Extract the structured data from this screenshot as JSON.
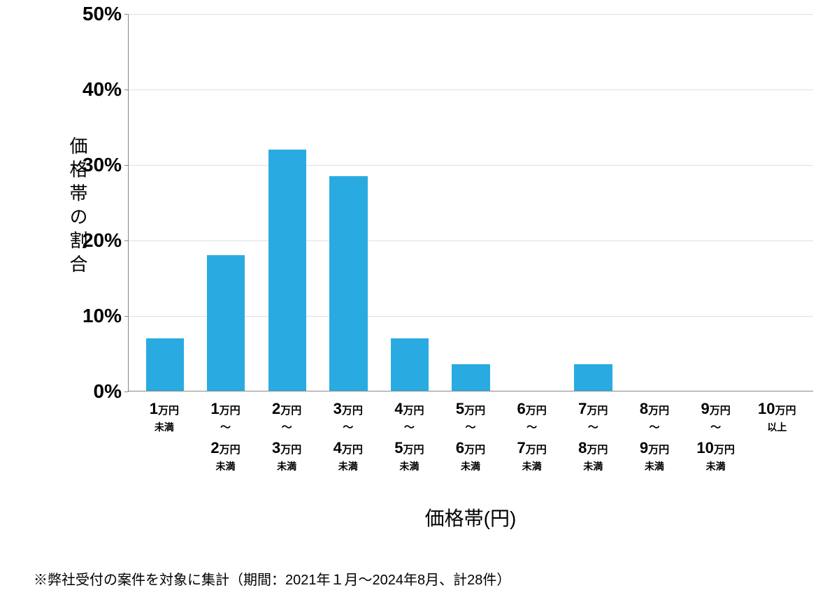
{
  "chart": {
    "type": "bar",
    "y_axis_label": "価格帯の割合",
    "x_axis_title": "価格帯(円)",
    "ylim": [
      0,
      50
    ],
    "ytick_step": 10,
    "ytick_suffix": "%",
    "yticks": [
      0,
      10,
      20,
      30,
      40,
      50
    ],
    "background_color": "#ffffff",
    "grid_color": "#e0e0e0",
    "axis_color": "#888888",
    "bar_color": "#29abe2",
    "bar_width_ratio": 0.62,
    "tick_label_fontsize": 28,
    "tick_label_fontweight": 700,
    "axis_label_fontsize": 26,
    "x_axis_title_fontsize": 28,
    "categories": [
      {
        "big": "1",
        "unit": "万円",
        "range_sep": "",
        "big2": "",
        "unit2": "",
        "sub": "未満"
      },
      {
        "big": "1",
        "unit": "万円",
        "range_sep": "〜",
        "big2": "2",
        "unit2": "万円",
        "sub": "未満"
      },
      {
        "big": "2",
        "unit": "万円",
        "range_sep": "〜",
        "big2": "3",
        "unit2": "万円",
        "sub": "未満"
      },
      {
        "big": "3",
        "unit": "万円",
        "range_sep": "〜",
        "big2": "4",
        "unit2": "万円",
        "sub": "未満"
      },
      {
        "big": "4",
        "unit": "万円",
        "range_sep": "〜",
        "big2": "5",
        "unit2": "万円",
        "sub": "未満"
      },
      {
        "big": "5",
        "unit": "万円",
        "range_sep": "〜",
        "big2": "6",
        "unit2": "万円",
        "sub": "未満"
      },
      {
        "big": "6",
        "unit": "万円",
        "range_sep": "〜",
        "big2": "7",
        "unit2": "万円",
        "sub": "未満"
      },
      {
        "big": "7",
        "unit": "万円",
        "range_sep": "〜",
        "big2": "8",
        "unit2": "万円",
        "sub": "未満"
      },
      {
        "big": "8",
        "unit": "万円",
        "range_sep": "〜",
        "big2": "9",
        "unit2": "万円",
        "sub": "未満"
      },
      {
        "big": "9",
        "unit": "万円",
        "range_sep": "〜",
        "big2": "10",
        "unit2": "万円",
        "sub": "未満"
      },
      {
        "big": "10",
        "unit": "万円",
        "range_sep": "",
        "big2": "",
        "unit2": "",
        "sub": "以上"
      }
    ],
    "values": [
      7,
      18,
      32,
      28.5,
      7,
      3.5,
      0,
      3.5,
      0,
      0,
      0
    ]
  },
  "footnote": "※弊社受付の案件を対象に集計（期間：2021年１月〜2024年8月、計28件）"
}
